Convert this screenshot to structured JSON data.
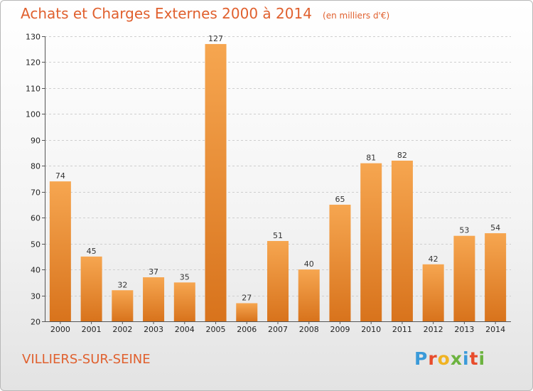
{
  "chart_data": {
    "type": "bar",
    "title": "Achats et Charges Externes 2000 à 2014",
    "unit_note": "(en milliers d'€)",
    "categories": [
      "2000",
      "2001",
      "2002",
      "2003",
      "2004",
      "2005",
      "2006",
      "2007",
      "2008",
      "2009",
      "2010",
      "2011",
      "2012",
      "2013",
      "2014"
    ],
    "values": [
      74,
      45,
      32,
      37,
      35,
      127,
      27,
      51,
      40,
      65,
      81,
      82,
      42,
      53,
      54
    ],
    "ylim": [
      20,
      130
    ],
    "yticks": [
      20,
      30,
      40,
      50,
      60,
      70,
      80,
      90,
      100,
      110,
      120,
      130
    ],
    "grid": true,
    "bar_color": "#f0902f"
  },
  "footer": {
    "commune": "VILLIERS-SUR-SEINE",
    "logo_text": "Proxiti",
    "logo_colors": [
      "#3a9ad9",
      "#e84c2c",
      "#f0b323",
      "#6cb33f",
      "#3a9ad9",
      "#e84c2c",
      "#6cb33f"
    ]
  }
}
